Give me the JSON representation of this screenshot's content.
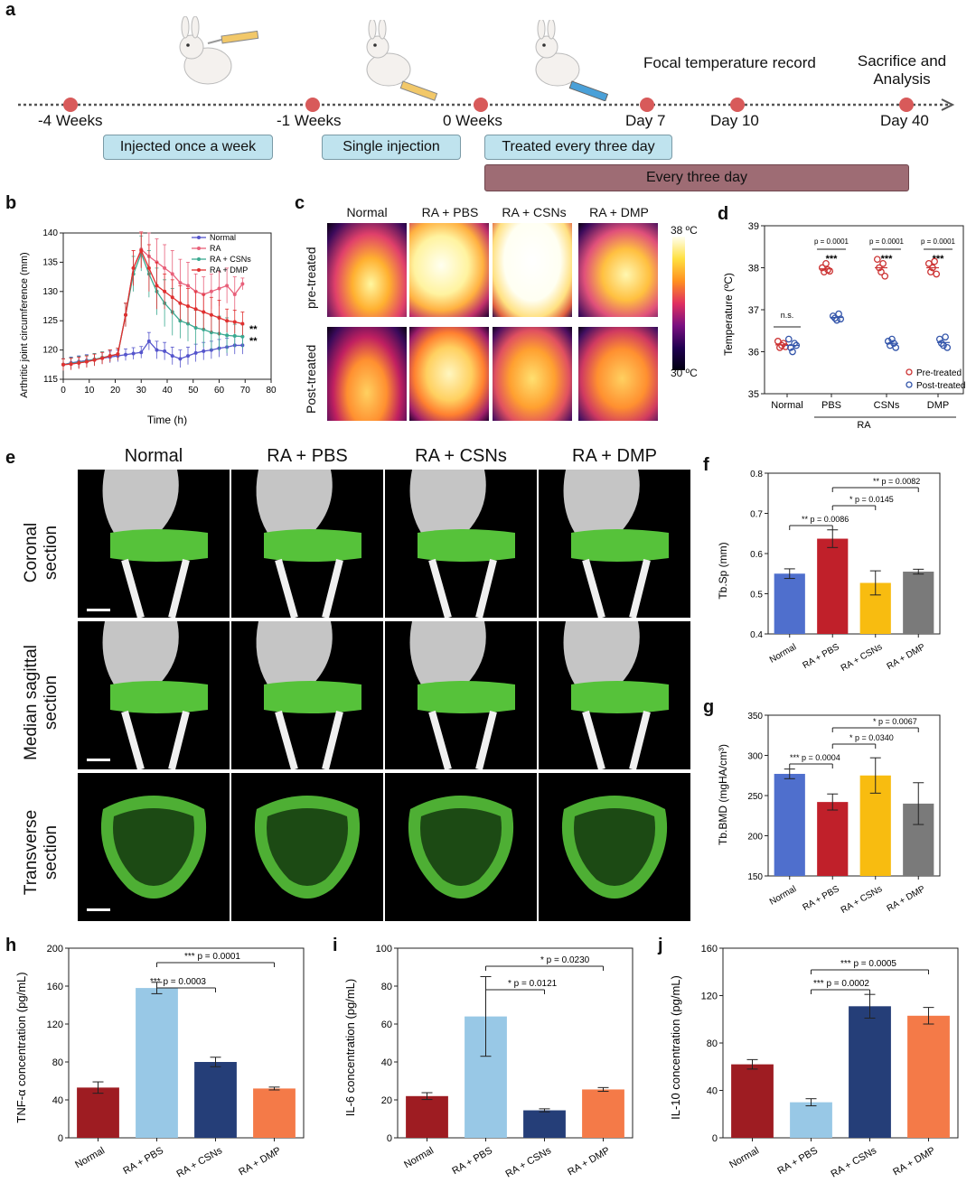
{
  "panel_a": {
    "label": "a",
    "timepoints": [
      "-4 Weeks",
      "-1 Weeks",
      "0 Weeks",
      "Day 7",
      "Day 10",
      "Day 40"
    ],
    "top_labels": [
      "Focal temperature record",
      "Sacrifice and Analysis"
    ],
    "boxes": [
      "Injected once a week",
      "Single injection",
      "Treated every three day"
    ],
    "long_box": "Every three day"
  },
  "panel_b": {
    "label": "b",
    "ylabel": "Arthritic joint circumference (mm)",
    "xlabel": "Time (h)",
    "legend": [
      "Normal",
      "RA",
      "RA + CSNs",
      "RA + DMP"
    ],
    "colors": [
      "#5555cc",
      "#e8607a",
      "#3aa990",
      "#e03030"
    ],
    "sig1": "**",
    "sig2": "**"
  },
  "panel_c": {
    "label": "c",
    "columns": [
      "Normal",
      "RA + PBS",
      "RA + CSNs",
      "RA + DMP"
    ],
    "rows": [
      "pre-treated",
      "Post-treated"
    ],
    "scale_max": "38 ºC",
    "scale_min": "30 ºC"
  },
  "panel_d": {
    "label": "d",
    "ylabel": "Temperature (ºC)",
    "categories": [
      "Normal",
      "PBS",
      "CSNs",
      "DMP"
    ],
    "group_label": "RA",
    "ns": "n.s.",
    "p_labels": [
      "p = 0.0001",
      "p = 0.0001",
      "p = 0.0001"
    ],
    "stars": [
      "***",
      "***",
      "***"
    ],
    "legend": [
      "Pre-treated",
      "Post-treated"
    ]
  },
  "panel_e": {
    "label": "e",
    "columns": [
      "Normal",
      "RA + PBS",
      "RA + CSNs",
      "RA + DMP"
    ],
    "rows": [
      "Coronal section",
      "Median sagittal section",
      "Transverse section"
    ]
  },
  "panel_f": {
    "label": "f",
    "ylabel": "Tb.Sp (mm)",
    "categories": [
      "Normal",
      "RA + PBS",
      "RA + CSNs",
      "RA + DMP"
    ],
    "annotations": [
      "** p = 0.0086",
      "* p = 0.0145",
      "** p = 0.0082"
    ]
  },
  "panel_g": {
    "label": "g",
    "ylabel": "Tb.BMD (mgHA/cm³)",
    "categories": [
      "Normal",
      "RA + PBS",
      "RA + CSNs",
      "RA + DMP"
    ],
    "annotations": [
      "*** p = 0.0004",
      "* p = 0.0340",
      "* p = 0.0067"
    ]
  },
  "panel_h": {
    "label": "h",
    "ylabel": "TNF-α concentration (pg/mL)",
    "categories": [
      "Normal",
      "RA + PBS",
      "RA + CSNs",
      "RA + DMP"
    ],
    "annotations": [
      "*** p = 0.0001",
      "*** p = 0.0003"
    ]
  },
  "panel_i": {
    "label": "i",
    "ylabel": "IL-6 concentration (pg/mL)",
    "categories": [
      "Normal",
      "RA + PBS",
      "RA + CSNs",
      "RA + DMP"
    ],
    "annotations": [
      "* p = 0.0230",
      "* p = 0.0121"
    ]
  },
  "panel_j": {
    "label": "j",
    "ylabel": "IL-10 concentration (pg/mL)",
    "categories": [
      "Normal",
      "RA + PBS",
      "RA + CSNs",
      "RA + DMP"
    ],
    "annotations": [
      "*** p = 0.0005",
      "*** p = 0.0002"
    ]
  },
  "chart_data": [
    {
      "id": "b",
      "type": "line",
      "xlabel": "Time (h)",
      "ylabel": "Arthritic joint circumference (mm)",
      "xlim": [
        0,
        80
      ],
      "ylim": [
        115,
        140
      ],
      "x": [
        0,
        3,
        6,
        9,
        12,
        15,
        18,
        21,
        24,
        27,
        30,
        33,
        36,
        39,
        42,
        45,
        48,
        51,
        54,
        57,
        60,
        63,
        66,
        69
      ],
      "series": [
        {
          "name": "Normal",
          "color": "#5555cc",
          "values": [
            117.5,
            117.8,
            118,
            118.2,
            118.4,
            118.6,
            118.8,
            119,
            119.2,
            119.4,
            119.6,
            121.5,
            120,
            119.8,
            119,
            118.5,
            119,
            119.5,
            119.8,
            120,
            120.3,
            120.5,
            120.8,
            120.8
          ],
          "err": [
            1,
            1,
            1,
            1,
            1,
            1,
            1,
            1,
            1,
            1,
            1,
            1.5,
            1.5,
            1.5,
            1.5,
            1.5,
            1.5,
            1.5,
            1.5,
            1.5,
            1.5,
            1.5,
            1.5,
            1.5
          ]
        },
        {
          "name": "RA",
          "color": "#e8607a",
          "values": [
            117.5,
            117.6,
            117.8,
            118,
            118.3,
            118.6,
            119,
            119.3,
            126,
            134,
            137.2,
            136,
            135,
            134,
            133,
            131.5,
            131,
            130,
            129.5,
            130,
            130.5,
            131,
            129.5,
            131.3
          ],
          "err": [
            1,
            1,
            1,
            1,
            1,
            1,
            1,
            1,
            2,
            3,
            3,
            4,
            4,
            4,
            4,
            4,
            4,
            3,
            3,
            3,
            3,
            3,
            3,
            1
          ]
        },
        {
          "name": "RA + CSNs",
          "color": "#3aa990",
          "values": [
            117.5,
            117.7,
            117.9,
            118.1,
            118.4,
            118.7,
            119,
            119.3,
            126,
            133,
            136.5,
            133,
            130,
            128,
            126.5,
            125,
            124.5,
            123.8,
            123.5,
            123,
            122.8,
            122.5,
            122.4,
            122.3
          ],
          "err": [
            1,
            1,
            1,
            1,
            1,
            1,
            1,
            1,
            2,
            3,
            3,
            4,
            4,
            4,
            4,
            3,
            3,
            3,
            3,
            3,
            3,
            3,
            2,
            2
          ]
        },
        {
          "name": "RA + DMP",
          "color": "#e03030",
          "values": [
            117.5,
            117.6,
            117.8,
            118,
            118.3,
            118.6,
            119,
            119.3,
            126,
            134,
            137,
            134,
            131,
            130,
            129,
            128,
            127.5,
            127,
            126.5,
            126,
            125.5,
            125,
            124.8,
            124.5
          ],
          "err": [
            1,
            1,
            1,
            1,
            1,
            1,
            1,
            1,
            2,
            3,
            3,
            4,
            4,
            3,
            3,
            3,
            3,
            3,
            3,
            3,
            3,
            2,
            2,
            2
          ]
        }
      ]
    },
    {
      "id": "d",
      "type": "scatter",
      "ylabel": "Temperature (ºC)",
      "ylim": [
        35,
        39
      ],
      "categories": [
        "Normal",
        "PBS",
        "CSNs",
        "DMP"
      ],
      "series": [
        {
          "name": "Pre-treated",
          "color": "#cc3333",
          "values": [
            [
              36.25,
              36.1,
              36.15,
              36.2,
              36.12
            ],
            [
              38.0,
              37.9,
              38.1,
              37.95,
              37.92
            ],
            [
              38.2,
              38.0,
              37.9,
              38.1,
              37.8
            ],
            [
              38.1,
              37.9,
              38.0,
              38.15,
              37.85
            ]
          ]
        },
        {
          "name": "Post-treated",
          "color": "#3355aa",
          "values": [
            [
              36.3,
              36.1,
              36.0,
              36.2,
              36.15
            ],
            [
              36.85,
              36.8,
              36.75,
              36.9,
              36.78
            ],
            [
              36.25,
              36.15,
              36.3,
              36.2,
              36.1
            ],
            [
              36.3,
              36.2,
              36.15,
              36.35,
              36.1
            ]
          ]
        }
      ]
    },
    {
      "id": "f",
      "type": "bar",
      "ylabel": "Tb.Sp (mm)",
      "ylim": [
        0.4,
        0.8
      ],
      "categories": [
        "Normal",
        "RA + PBS",
        "RA + CSNs",
        "RA + DMP"
      ],
      "values": [
        0.55,
        0.637,
        0.527,
        0.555
      ],
      "err": [
        0.012,
        0.022,
        0.03,
        0.006
      ],
      "colors": [
        "#4f6fcd",
        "#c0202a",
        "#f8bc10",
        "#7a7a7a"
      ]
    },
    {
      "id": "g",
      "type": "bar",
      "ylabel": "Tb.BMD (mgHA/cm³)",
      "ylim": [
        150,
        350
      ],
      "categories": [
        "Normal",
        "RA + PBS",
        "RA + CSNs",
        "RA + DMP"
      ],
      "values": [
        277,
        242,
        275,
        240
      ],
      "err": [
        6,
        10,
        22,
        26
      ],
      "colors": [
        "#4f6fcd",
        "#c0202a",
        "#f8bc10",
        "#7a7a7a"
      ]
    },
    {
      "id": "h",
      "type": "bar",
      "ylabel": "TNF-α concentration (pg/mL)",
      "ylim": [
        0,
        200
      ],
      "categories": [
        "Normal",
        "RA + PBS",
        "RA + CSNs",
        "RA + DMP"
      ],
      "values": [
        53,
        158,
        80,
        52
      ],
      "err": [
        6,
        6,
        5,
        1.5
      ],
      "colors": [
        "#9e1c22",
        "#98c8e6",
        "#253e78",
        "#f47a48"
      ]
    },
    {
      "id": "i",
      "type": "bar",
      "ylabel": "IL-6 concentration (pg/mL)",
      "ylim": [
        0,
        100
      ],
      "categories": [
        "Normal",
        "RA + PBS",
        "RA + CSNs",
        "RA + DMP"
      ],
      "values": [
        22,
        64,
        14.5,
        25.5
      ],
      "err": [
        1.8,
        21,
        0.8,
        1
      ],
      "colors": [
        "#9e1c22",
        "#98c8e6",
        "#253e78",
        "#f47a48"
      ]
    },
    {
      "id": "j",
      "type": "bar",
      "ylabel": "IL-10 concentration (pg/mL)",
      "ylim": [
        0,
        160
      ],
      "categories": [
        "Normal",
        "RA + PBS",
        "RA + CSNs",
        "RA + DMP"
      ],
      "values": [
        62,
        30,
        111,
        103
      ],
      "err": [
        4,
        3,
        10,
        7
      ],
      "colors": [
        "#9e1c22",
        "#98c8e6",
        "#253e78",
        "#f47a48"
      ]
    }
  ]
}
